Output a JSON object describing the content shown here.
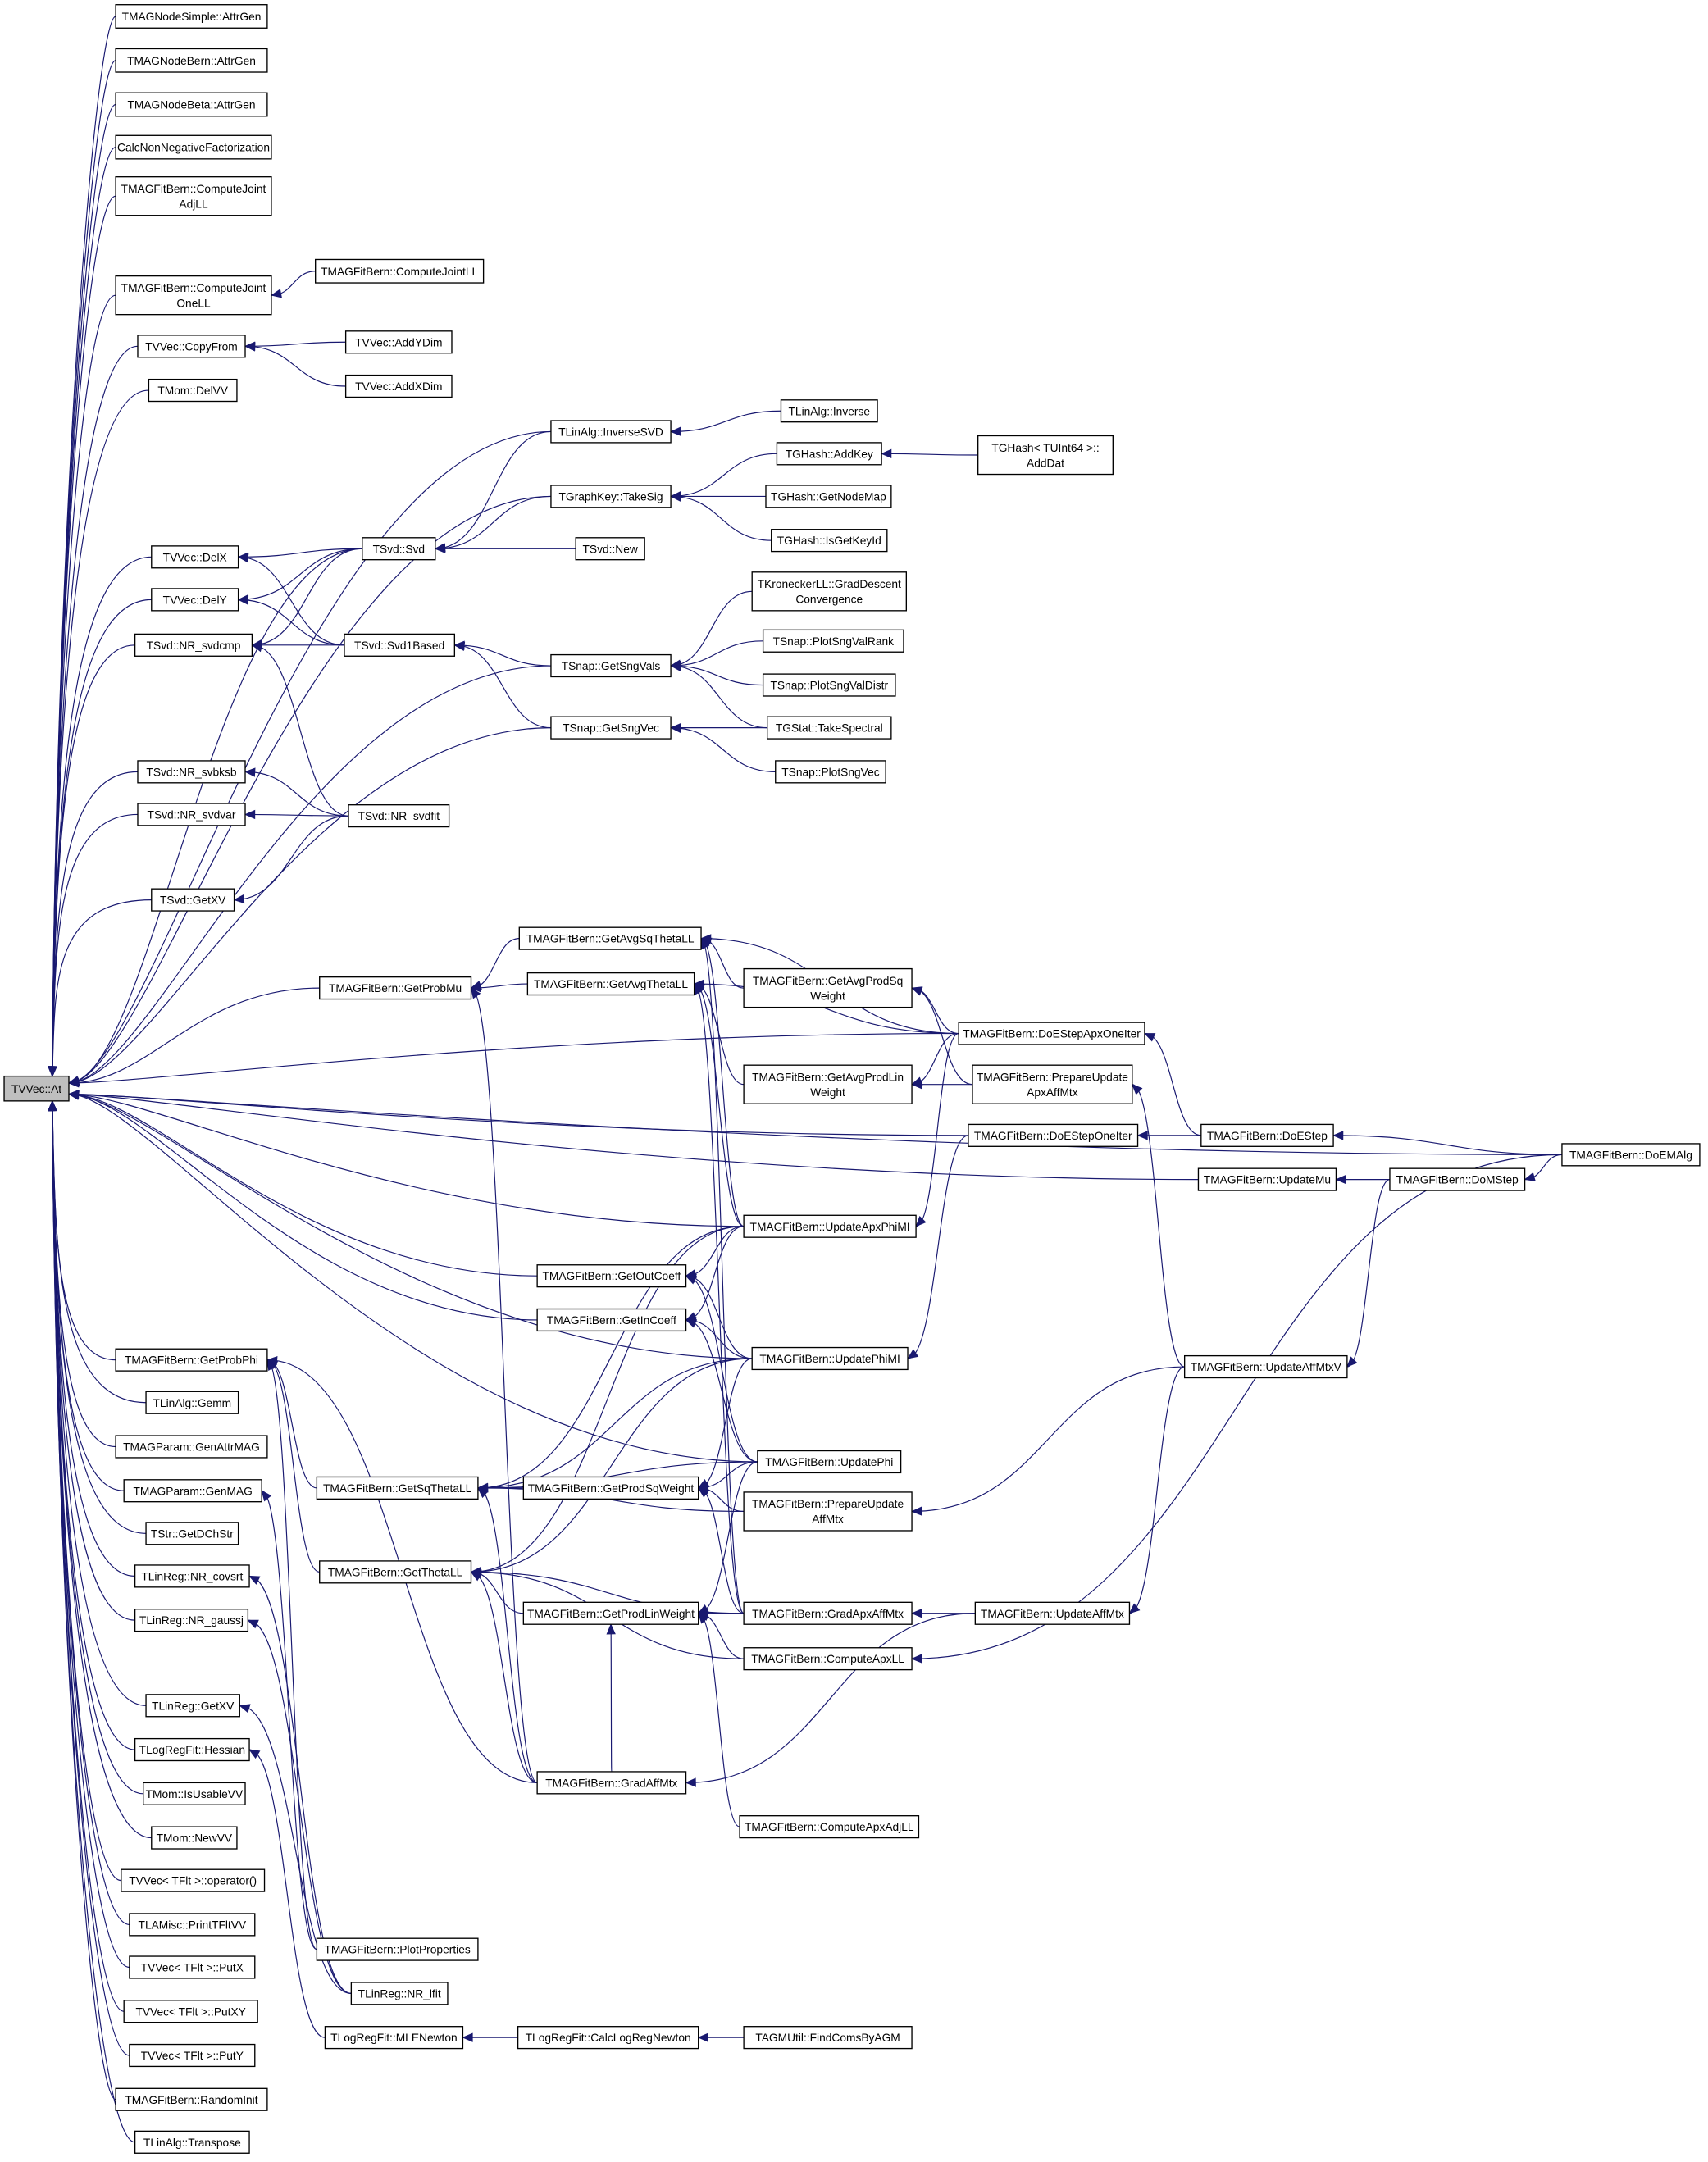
{
  "colors": {
    "edge": "#191970",
    "root_fill": "#bfbfbf",
    "node_fill": "#ffffff"
  },
  "root": "at",
  "nodes": [
    {
      "id": "at",
      "label": [
        "TVVec::At"
      ]
    },
    {
      "id": "simpleAttr",
      "label": [
        "TMAGNodeSimple::AttrGen"
      ]
    },
    {
      "id": "bernAttr",
      "label": [
        "TMAGNodeBern::AttrGen"
      ]
    },
    {
      "id": "betaAttr",
      "label": [
        "TMAGNodeBeta::AttrGen"
      ]
    },
    {
      "id": "cnnf",
      "label": [
        "CalcNonNegativeFactorization"
      ]
    },
    {
      "id": "cjAdj",
      "label": [
        "TMAGFitBern::ComputeJoint",
        "AdjLL"
      ]
    },
    {
      "id": "cjOne",
      "label": [
        "TMAGFitBern::ComputeJoint",
        "OneLL"
      ]
    },
    {
      "id": "cjLL",
      "label": [
        "TMAGFitBern::ComputeJointLL"
      ]
    },
    {
      "id": "copyFrom",
      "label": [
        "TVVec::CopyFrom"
      ]
    },
    {
      "id": "addY",
      "label": [
        "TVVec::AddYDim"
      ]
    },
    {
      "id": "addX",
      "label": [
        "TVVec::AddXDim"
      ]
    },
    {
      "id": "delVV",
      "label": [
        "TMom::DelVV"
      ]
    },
    {
      "id": "invSVD",
      "label": [
        "TLinAlg::InverseSVD"
      ]
    },
    {
      "id": "inverse",
      "label": [
        "TLinAlg::Inverse"
      ]
    },
    {
      "id": "addKey",
      "label": [
        "TGHash::AddKey"
      ]
    },
    {
      "id": "addDat",
      "label": [
        "TGHash< TUInt64 >::",
        "AddDat"
      ]
    },
    {
      "id": "takeSig",
      "label": [
        "TGraphKey::TakeSig"
      ]
    },
    {
      "id": "getNodeMap",
      "label": [
        "TGHash::GetNodeMap"
      ]
    },
    {
      "id": "isGetKeyId",
      "label": [
        "TGHash::IsGetKeyId"
      ]
    },
    {
      "id": "svd",
      "label": [
        "TSvd::Svd"
      ]
    },
    {
      "id": "svdNew",
      "label": [
        "TSvd::New"
      ]
    },
    {
      "id": "delX",
      "label": [
        "TVVec::DelX"
      ]
    },
    {
      "id": "delY",
      "label": [
        "TVVec::DelY"
      ]
    },
    {
      "id": "svdcmp",
      "label": [
        "TSvd::NR_svdcmp"
      ]
    },
    {
      "id": "svd1",
      "label": [
        "TSvd::Svd1Based"
      ]
    },
    {
      "id": "gradDesc",
      "label": [
        "TKroneckerLL::GradDescent",
        "Convergence"
      ]
    },
    {
      "id": "sngVals",
      "label": [
        "TSnap::GetSngVals"
      ]
    },
    {
      "id": "plotRank",
      "label": [
        "TSnap::PlotSngValRank"
      ]
    },
    {
      "id": "plotDistr",
      "label": [
        "TSnap::PlotSngValDistr"
      ]
    },
    {
      "id": "sngVec",
      "label": [
        "TSnap::GetSngVec"
      ]
    },
    {
      "id": "takeSpectral",
      "label": [
        "TGStat::TakeSpectral"
      ]
    },
    {
      "id": "plotSngVec",
      "label": [
        "TSnap::PlotSngVec"
      ]
    },
    {
      "id": "svbksb",
      "label": [
        "TSvd::NR_svbksb"
      ]
    },
    {
      "id": "svdvar",
      "label": [
        "TSvd::NR_svdvar"
      ]
    },
    {
      "id": "svdfit",
      "label": [
        "TSvd::NR_svdfit"
      ]
    },
    {
      "id": "svdGetXV",
      "label": [
        "TSvd::GetXV"
      ]
    },
    {
      "id": "avgSqTheta",
      "label": [
        "TMAGFitBern::GetAvgSqThetaLL"
      ]
    },
    {
      "id": "probMu",
      "label": [
        "TMAGFitBern::GetProbMu"
      ]
    },
    {
      "id": "avgTheta",
      "label": [
        "TMAGFitBern::GetAvgThetaLL"
      ]
    },
    {
      "id": "avgProdSq",
      "label": [
        "TMAGFitBern::GetAvgProdSq",
        "Weight"
      ]
    },
    {
      "id": "eApxOne",
      "label": [
        "TMAGFitBern::DoEStepApxOneIter"
      ]
    },
    {
      "id": "avgProdLin",
      "label": [
        "TMAGFitBern::GetAvgProdLin",
        "Weight"
      ]
    },
    {
      "id": "prepApx",
      "label": [
        "TMAGFitBern::PrepareUpdate",
        "ApxAffMtx"
      ]
    },
    {
      "id": "eOne",
      "label": [
        "TMAGFitBern::DoEStepOneIter"
      ]
    },
    {
      "id": "eStep",
      "label": [
        "TMAGFitBern::DoEStep"
      ]
    },
    {
      "id": "emAlg",
      "label": [
        "TMAGFitBern::DoEMAlg"
      ]
    },
    {
      "id": "updMu",
      "label": [
        "TMAGFitBern::UpdateMu"
      ]
    },
    {
      "id": "mStep",
      "label": [
        "TMAGFitBern::DoMStep"
      ]
    },
    {
      "id": "updApxPhi",
      "label": [
        "TMAGFitBern::UpdateApxPhiMI"
      ]
    },
    {
      "id": "outCoeff",
      "label": [
        "TMAGFitBern::GetOutCoeff"
      ]
    },
    {
      "id": "inCoeff",
      "label": [
        "TMAGFitBern::GetInCoeff"
      ]
    },
    {
      "id": "updPhiMI",
      "label": [
        "TMAGFitBern::UpdatePhiMI"
      ]
    },
    {
      "id": "updAffV",
      "label": [
        "TMAGFitBern::UpdateAffMtxV"
      ]
    },
    {
      "id": "probPhi",
      "label": [
        "TMAGFitBern::GetProbPhi"
      ]
    },
    {
      "id": "gemm",
      "label": [
        "TLinAlg::Gemm"
      ]
    },
    {
      "id": "genAttr",
      "label": [
        "TMAGParam::GenAttrMAG"
      ]
    },
    {
      "id": "genMAG",
      "label": [
        "TMAGParam::GenMAG"
      ]
    },
    {
      "id": "updPhi",
      "label": [
        "TMAGFitBern::UpdatePhi"
      ]
    },
    {
      "id": "sqTheta",
      "label": [
        "TMAGFitBern::GetSqThetaLL"
      ]
    },
    {
      "id": "prodSq",
      "label": [
        "TMAGFitBern::GetProdSqWeight"
      ]
    },
    {
      "id": "prepAff",
      "label": [
        "TMAGFitBern::PrepareUpdate",
        "AffMtx"
      ]
    },
    {
      "id": "dchStr",
      "label": [
        "TStr::GetDChStr"
      ]
    },
    {
      "id": "theta",
      "label": [
        "TMAGFitBern::GetThetaLL"
      ]
    },
    {
      "id": "covsrt",
      "label": [
        "TLinReg::NR_covsrt"
      ]
    },
    {
      "id": "prodLin",
      "label": [
        "TMAGFitBern::GetProdLinWeight"
      ]
    },
    {
      "id": "gradApx",
      "label": [
        "TMAGFitBern::GradApxAffMtx"
      ]
    },
    {
      "id": "updAff",
      "label": [
        "TMAGFitBern::UpdateAffMtx"
      ]
    },
    {
      "id": "gaussj",
      "label": [
        "TLinReg::NR_gaussj"
      ]
    },
    {
      "id": "apxLL",
      "label": [
        "TMAGFitBern::ComputeApxLL"
      ]
    },
    {
      "id": "lrGetXV",
      "label": [
        "TLinReg::GetXV"
      ]
    },
    {
      "id": "hessian",
      "label": [
        "TLogRegFit::Hessian"
      ]
    },
    {
      "id": "gradAff",
      "label": [
        "TMAGFitBern::GradAffMtx"
      ]
    },
    {
      "id": "usable",
      "label": [
        "TMom::IsUsableVV"
      ]
    },
    {
      "id": "apxAdj",
      "label": [
        "TMAGFitBern::ComputeApxAdjLL"
      ]
    },
    {
      "id": "newVV",
      "label": [
        "TMom::NewVV"
      ]
    },
    {
      "id": "op",
      "label": [
        "TVVec< TFlt >::operator()"
      ]
    },
    {
      "id": "printVV",
      "label": [
        "TLAMisc::PrintTFltVV"
      ]
    },
    {
      "id": "plotProps",
      "label": [
        "TMAGFitBern::PlotProperties"
      ]
    },
    {
      "id": "putX",
      "label": [
        "TVVec< TFlt >::PutX"
      ]
    },
    {
      "id": "lfit",
      "label": [
        "TLinReg::NR_lfit"
      ]
    },
    {
      "id": "putXY",
      "label": [
        "TVVec< TFlt >::PutXY"
      ]
    },
    {
      "id": "mleNewton",
      "label": [
        "TLogRegFit::MLENewton"
      ]
    },
    {
      "id": "calcLR",
      "label": [
        "TLogRegFit::CalcLogRegNewton"
      ]
    },
    {
      "id": "findComs",
      "label": [
        "TAGMUtil::FindComsByAGM"
      ]
    },
    {
      "id": "putY",
      "label": [
        "TVVec< TFlt >::PutY"
      ]
    },
    {
      "id": "randInit",
      "label": [
        "TMAGFitBern::RandomInit"
      ]
    },
    {
      "id": "transpose",
      "label": [
        "TLinAlg::Transpose"
      ]
    }
  ],
  "edges": [
    [
      "simpleAttr",
      "at"
    ],
    [
      "bernAttr",
      "at"
    ],
    [
      "betaAttr",
      "at"
    ],
    [
      "cnnf",
      "at"
    ],
    [
      "cjAdj",
      "at"
    ],
    [
      "cjOne",
      "at"
    ],
    [
      "copyFrom",
      "at"
    ],
    [
      "delVV",
      "at"
    ],
    [
      "invSVD",
      "at"
    ],
    [
      "takeSig",
      "at"
    ],
    [
      "svd",
      "at"
    ],
    [
      "delX",
      "at"
    ],
    [
      "delY",
      "at"
    ],
    [
      "svdcmp",
      "at"
    ],
    [
      "sngVals",
      "at"
    ],
    [
      "sngVec",
      "at"
    ],
    [
      "svbksb",
      "at"
    ],
    [
      "svdvar",
      "at"
    ],
    [
      "svdGetXV",
      "at"
    ],
    [
      "emAlg",
      "at"
    ],
    [
      "probMu",
      "at"
    ],
    [
      "eApxOne",
      "at"
    ],
    [
      "eOne",
      "at"
    ],
    [
      "updMu",
      "at"
    ],
    [
      "updApxPhi",
      "at"
    ],
    [
      "outCoeff",
      "at"
    ],
    [
      "inCoeff",
      "at"
    ],
    [
      "updPhi",
      "at"
    ],
    [
      "updPhiMI",
      "at"
    ],
    [
      "probPhi",
      "at"
    ],
    [
      "gemm",
      "at"
    ],
    [
      "genAttr",
      "at"
    ],
    [
      "genMAG",
      "at"
    ],
    [
      "dchStr",
      "at"
    ],
    [
      "covsrt",
      "at"
    ],
    [
      "gaussj",
      "at"
    ],
    [
      "lrGetXV",
      "at"
    ],
    [
      "hessian",
      "at"
    ],
    [
      "usable",
      "at"
    ],
    [
      "newVV",
      "at"
    ],
    [
      "op",
      "at"
    ],
    [
      "printVV",
      "at"
    ],
    [
      "putX",
      "at"
    ],
    [
      "putXY",
      "at"
    ],
    [
      "putY",
      "at"
    ],
    [
      "randInit",
      "at"
    ],
    [
      "transpose",
      "at"
    ],
    [
      "cjLL",
      "cjOne"
    ],
    [
      "addY",
      "copyFrom"
    ],
    [
      "addX",
      "copyFrom"
    ],
    [
      "inverse",
      "invSVD"
    ],
    [
      "invSVD",
      "svd"
    ],
    [
      "takeSig",
      "svd"
    ],
    [
      "svdNew",
      "svd"
    ],
    [
      "addKey",
      "takeSig"
    ],
    [
      "getNodeMap",
      "takeSig"
    ],
    [
      "isGetKeyId",
      "takeSig"
    ],
    [
      "addDat",
      "addKey"
    ],
    [
      "svd",
      "delX"
    ],
    [
      "svd",
      "delY"
    ],
    [
      "svd",
      "svdcmp"
    ],
    [
      "svd1",
      "delX"
    ],
    [
      "svd1",
      "delY"
    ],
    [
      "svd1",
      "svdcmp"
    ],
    [
      "svdfit",
      "svdcmp"
    ],
    [
      "sngVals",
      "svd1"
    ],
    [
      "sngVec",
      "svd1"
    ],
    [
      "gradDesc",
      "sngVals"
    ],
    [
      "plotRank",
      "sngVals"
    ],
    [
      "plotDistr",
      "sngVals"
    ],
    [
      "takeSpectral",
      "sngVals"
    ],
    [
      "takeSpectral",
      "sngVec"
    ],
    [
      "plotSngVec",
      "sngVec"
    ],
    [
      "svdfit",
      "svbksb"
    ],
    [
      "svdfit",
      "svdvar"
    ],
    [
      "svdfit",
      "svdGetXV"
    ],
    [
      "avgSqTheta",
      "probMu"
    ],
    [
      "avgTheta",
      "probMu"
    ],
    [
      "gradAff",
      "probMu"
    ],
    [
      "avgProdSq",
      "avgSqTheta"
    ],
    [
      "eApxOne",
      "avgSqTheta"
    ],
    [
      "eApxOne",
      "avgTheta"
    ],
    [
      "eApxOne",
      "avgProdSq"
    ],
    [
      "eApxOne",
      "avgProdLin"
    ],
    [
      "prepApx",
      "avgProdLin"
    ],
    [
      "prepApx",
      "avgProdSq"
    ],
    [
      "avgProdLin",
      "avgTheta"
    ],
    [
      "eStep",
      "eApxOne"
    ],
    [
      "eStep",
      "eOne"
    ],
    [
      "emAlg",
      "eStep"
    ],
    [
      "emAlg",
      "mStep"
    ],
    [
      "mStep",
      "updMu"
    ],
    [
      "mStep",
      "updAffV"
    ],
    [
      "updAffV",
      "prepApx"
    ],
    [
      "updAffV",
      "prepAff"
    ],
    [
      "updAffV",
      "updAff"
    ],
    [
      "updApxPhi",
      "avgSqTheta"
    ],
    [
      "updApxPhi",
      "avgTheta"
    ],
    [
      "updApxPhi",
      "outCoeff"
    ],
    [
      "updApxPhi",
      "inCoeff"
    ],
    [
      "updApxPhi",
      "sqTheta"
    ],
    [
      "updApxPhi",
      "theta"
    ],
    [
      "eApxOne",
      "updApxPhi"
    ],
    [
      "eOne",
      "updPhiMI"
    ],
    [
      "updPhiMI",
      "outCoeff"
    ],
    [
      "updPhiMI",
      "inCoeff"
    ],
    [
      "updPhiMI",
      "sqTheta"
    ],
    [
      "updPhiMI",
      "theta"
    ],
    [
      "updPhiMI",
      "prodSq"
    ],
    [
      "updPhi",
      "outCoeff"
    ],
    [
      "updPhi",
      "inCoeff"
    ],
    [
      "updPhi",
      "prodSq"
    ],
    [
      "updPhi",
      "prodLin"
    ],
    [
      "updPhi",
      "sqTheta"
    ],
    [
      "prodSq",
      "sqTheta"
    ],
    [
      "prodLin",
      "theta"
    ],
    [
      "sqTheta",
      "probPhi"
    ],
    [
      "theta",
      "probPhi"
    ],
    [
      "prepAff",
      "prodSq"
    ],
    [
      "prepAff",
      "sqTheta"
    ],
    [
      "gradApx",
      "prodLin"
    ],
    [
      "gradApx",
      "prodSq"
    ],
    [
      "gradApx",
      "avgSqTheta"
    ],
    [
      "gradApx",
      "avgTheta"
    ],
    [
      "gradApx",
      "theta"
    ],
    [
      "updAff",
      "gradApx"
    ],
    [
      "updAff",
      "gradAff"
    ],
    [
      "apxLL",
      "prodLin"
    ],
    [
      "apxLL",
      "theta"
    ],
    [
      "emAlg",
      "apxLL"
    ],
    [
      "gradAff",
      "probPhi"
    ],
    [
      "gradAff",
      "sqTheta"
    ],
    [
      "gradAff",
      "theta"
    ],
    [
      "gradAff",
      "prodLin"
    ],
    [
      "apxAdj",
      "prodLin"
    ],
    [
      "plotProps",
      "genMAG"
    ],
    [
      "plotProps",
      "probPhi"
    ],
    [
      "lfit",
      "covsrt"
    ],
    [
      "lfit",
      "gaussj"
    ],
    [
      "lfit",
      "lrGetXV"
    ],
    [
      "mleNewton",
      "hessian"
    ],
    [
      "calcLR",
      "mleNewton"
    ],
    [
      "findComs",
      "calcLR"
    ]
  ]
}
